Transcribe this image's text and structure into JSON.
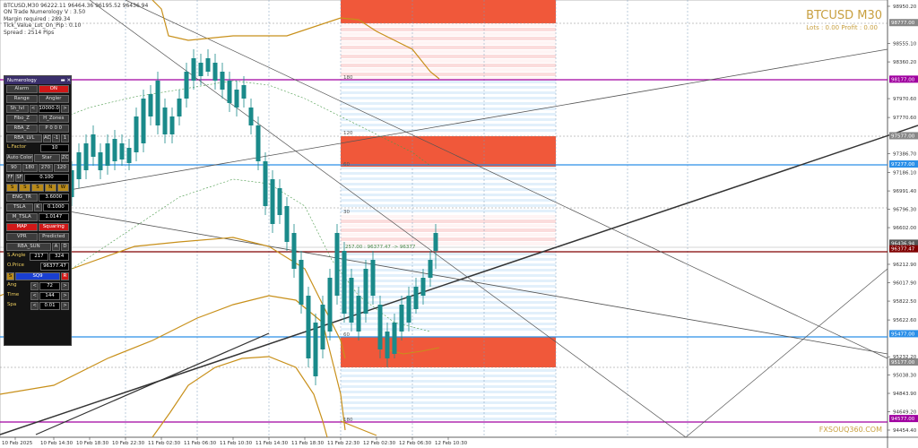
{
  "header": {
    "line1": "BTCUSD,M30 96222.11 96464.36 96195.52 96436.94",
    "line2": "ON Trade Numerology V : 3.50",
    "line3": "Margin required : 289.34",
    "line4": "Tick_Value_Lot_On_Pip : 0.10",
    "line5": "Spread : 2514 Pips"
  },
  "title": "BTCUSD M30",
  "lots_profit": "Lots : 0.00 Profit : 0.00",
  "watermark": "FXSOUQ360.COM",
  "price_axis": [
    "98950.20",
    "98777.00",
    "98555.10",
    "98360.20",
    "98177.00",
    "97970.60",
    "97770.60",
    "97577.00",
    "97386.70",
    "97277.00",
    "97186.10",
    "96991.40",
    "96796.30",
    "96602.00",
    "96436.94",
    "96377.47",
    "96212.90",
    "96017.90",
    "95822.50",
    "95622.60",
    "95477.00",
    "95232.20",
    "95177.00",
    "95038.30",
    "94843.90",
    "94649.20",
    "94577.00",
    "94454.40"
  ],
  "time_axis": [
    "10 Feb 2025",
    "10 Feb 14:30",
    "10 Feb 18:30",
    "10 Feb 22:30",
    "11 Feb 02:30",
    "11 Feb 06:30",
    "11 Feb 10:30",
    "11 Feb 14:30",
    "11 Feb 18:30",
    "11 Feb 22:30",
    "12 Feb 02:30",
    "12 Feb 06:30",
    "12 Feb 10:30"
  ],
  "zone_labels": {
    "z180": "180",
    "z120": "120",
    "z60": "60",
    "z30": "30",
    "mid": "257.00 : 96377.47 -> 96377",
    "low60": "60",
    "low180": "180"
  },
  "panel": {
    "title": "Numerology",
    "alarm": "Alarm",
    "on": "ON",
    "range": "Range",
    "angler": "Angler",
    "sh_lvl": "Sh_lvl",
    "sh_val": "10000.00",
    "fibo_z": "Fibo_Z",
    "h_zones": "H_Zones",
    "rba_z": "RBA_Z",
    "rba_lvl": "RBA_LVL",
    "ac": "AC",
    "l_factor": "L.Factor",
    "l_factor_val": "10",
    "auto_color": "Auto Color",
    "star": "Star",
    "zc": "ZC",
    "a90": "90",
    "a180": "180",
    "a270": "270",
    "a120": "120",
    "ff": "FF",
    "sf": "SF",
    "ff_val": "0.100",
    "eng_tr": "ENG_TR",
    "eng_val": "3.6000",
    "tsla": "TSLA",
    "tsla_val": "0.1000",
    "m_tsla": "M_TSLA",
    "m_tsla_val": "1.0147",
    "map": "MAP",
    "squaring": "Squaring",
    "vpr": "VPR",
    "predicted": "Predicted",
    "rba_sun": "RBA_SUN",
    "s_angle": "S.Angle",
    "s_angle_val": "217",
    "s_angle_val2": "324",
    "o_price": "O.Price",
    "o_price_val": "96377.47",
    "s_btn": "S",
    "sq9": "SQ9",
    "r_btn": "R",
    "ang": "Ang",
    "ang_val": "72",
    "time": "Time",
    "time_val": "144",
    "spa": "Spa",
    "spa_val": "0.01"
  },
  "colors": {
    "bull": "#1a8a8a",
    "bear": "#1a8a8a",
    "gold": "#c8901a",
    "magenta": "#a000a0",
    "blue_line": "#2b8fe8",
    "red_line": "#800000",
    "zone_red": "#f0583a",
    "zone_pink": "#fbdcdc",
    "zone_blue": "#e2f0fb"
  }
}
